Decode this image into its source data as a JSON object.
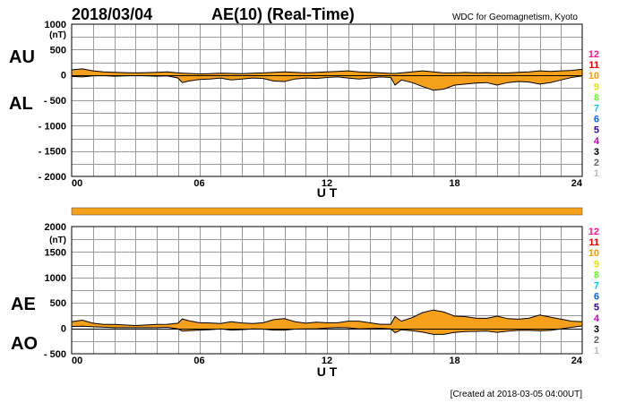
{
  "header": {
    "date": "2018/03/04",
    "title": "AE(10) (Real-Time)",
    "source": "WDC for Geomagnetism, Kyoto"
  },
  "footer": {
    "created": "[Created at 2018-03-05 04:00UT]"
  },
  "colors": {
    "fill": "#f5a01a",
    "station_count_bar": "#f5a01a",
    "station_levels": {
      "12": "#ff1493",
      "11": "#e60000",
      "10": "#ff9900",
      "9": "#e6e600",
      "8": "#66ff33",
      "7": "#00ccff",
      "6": "#0066ff",
      "5": "#3300aa",
      "4": "#cc00cc",
      "3": "#000000",
      "2": "#666666",
      "1": "#bbbbbb"
    }
  },
  "chart_data": [
    {
      "type": "area",
      "panel": "AU/AL",
      "series_labels": [
        "AU",
        "AL"
      ],
      "unit_label": "(nT)",
      "xlabel": "U T",
      "xlim": [
        0,
        24
      ],
      "xticks": [
        "00",
        "06",
        "12",
        "18",
        "24"
      ],
      "ylim": [
        -2000,
        1000
      ],
      "yticks": [
        "1000",
        "500",
        "0",
        "- 500",
        "- 1000",
        "- 1500",
        "- 2000"
      ],
      "x": [
        0,
        0.5,
        1,
        1.5,
        2,
        2.5,
        3,
        3.5,
        4,
        4.5,
        5,
        5.2,
        5.5,
        6,
        6.5,
        7,
        7.5,
        8,
        8.5,
        9,
        9.5,
        10,
        10.5,
        11,
        11.5,
        12,
        12.5,
        13,
        13.5,
        14,
        14.5,
        15,
        15.2,
        15.5,
        16,
        16.5,
        17,
        17.5,
        18,
        18.5,
        19,
        19.5,
        20,
        20.5,
        21,
        21.5,
        22,
        22.5,
        23,
        23.5,
        24
      ],
      "series": [
        {
          "name": "AU",
          "values": [
            100,
            120,
            80,
            60,
            50,
            45,
            40,
            45,
            50,
            60,
            40,
            35,
            30,
            20,
            25,
            35,
            30,
            25,
            35,
            40,
            50,
            60,
            50,
            40,
            50,
            60,
            70,
            80,
            60,
            50,
            40,
            30,
            30,
            40,
            60,
            80,
            60,
            40,
            40,
            50,
            40,
            45,
            40,
            40,
            50,
            60,
            80,
            70,
            80,
            90,
            110
          ]
        },
        {
          "name": "AL",
          "values": [
            -30,
            -40,
            -20,
            -15,
            -25,
            -20,
            -15,
            -20,
            -25,
            -20,
            -60,
            -150,
            -120,
            -90,
            -80,
            -60,
            -100,
            -80,
            -60,
            -70,
            -120,
            -130,
            -80,
            -60,
            -70,
            -50,
            -40,
            -60,
            -80,
            -60,
            -40,
            -50,
            -200,
            -100,
            -150,
            -230,
            -300,
            -280,
            -200,
            -180,
            -160,
            -150,
            -200,
            -150,
            -130,
            -140,
            -180,
            -150,
            -100,
            -50,
            -20
          ]
        }
      ]
    },
    {
      "type": "area",
      "panel": "AE/AO",
      "series_labels": [
        "AE",
        "AO"
      ],
      "unit_label": "(nT)",
      "xlabel": "U T",
      "xlim": [
        0,
        24
      ],
      "xticks": [
        "00",
        "06",
        "12",
        "18",
        "24"
      ],
      "ylim": [
        -500,
        2000
      ],
      "yticks": [
        "2000",
        "1500",
        "1000",
        "500",
        "0",
        "- 500"
      ],
      "x": [
        0,
        0.5,
        1,
        1.5,
        2,
        2.5,
        3,
        3.5,
        4,
        4.5,
        5,
        5.2,
        5.5,
        6,
        6.5,
        7,
        7.5,
        8,
        8.5,
        9,
        9.5,
        10,
        10.5,
        11,
        11.5,
        12,
        12.5,
        13,
        13.5,
        14,
        14.5,
        15,
        15.2,
        15.5,
        16,
        16.5,
        17,
        17.5,
        18,
        18.5,
        19,
        19.5,
        20,
        20.5,
        21,
        21.5,
        22,
        22.5,
        23,
        23.5,
        24
      ],
      "series": [
        {
          "name": "AE",
          "values": [
            130,
            160,
            100,
            75,
            75,
            65,
            55,
            65,
            75,
            80,
            100,
            185,
            150,
            110,
            105,
            95,
            130,
            105,
            95,
            110,
            170,
            190,
            130,
            100,
            120,
            110,
            110,
            140,
            140,
            110,
            80,
            80,
            230,
            140,
            210,
            310,
            360,
            320,
            240,
            230,
            200,
            195,
            240,
            190,
            180,
            200,
            260,
            220,
            180,
            140,
            130
          ]
        },
        {
          "name": "AO",
          "values": [
            35,
            40,
            30,
            22,
            12,
            12,
            12,
            12,
            12,
            20,
            -10,
            -57,
            -45,
            -35,
            -27,
            -12,
            -35,
            -27,
            -12,
            -15,
            -35,
            -35,
            -15,
            -10,
            -10,
            5,
            15,
            10,
            -10,
            -5,
            0,
            -10,
            -85,
            -30,
            -45,
            -75,
            -120,
            -120,
            -80,
            -65,
            -60,
            -52,
            -80,
            -55,
            -40,
            -40,
            -50,
            -40,
            -10,
            20,
            45
          ]
        }
      ]
    }
  ],
  "station_scale": [
    "12",
    "11",
    "10",
    "9",
    "8",
    "7",
    "6",
    "5",
    "4",
    "3",
    "2",
    "1"
  ]
}
